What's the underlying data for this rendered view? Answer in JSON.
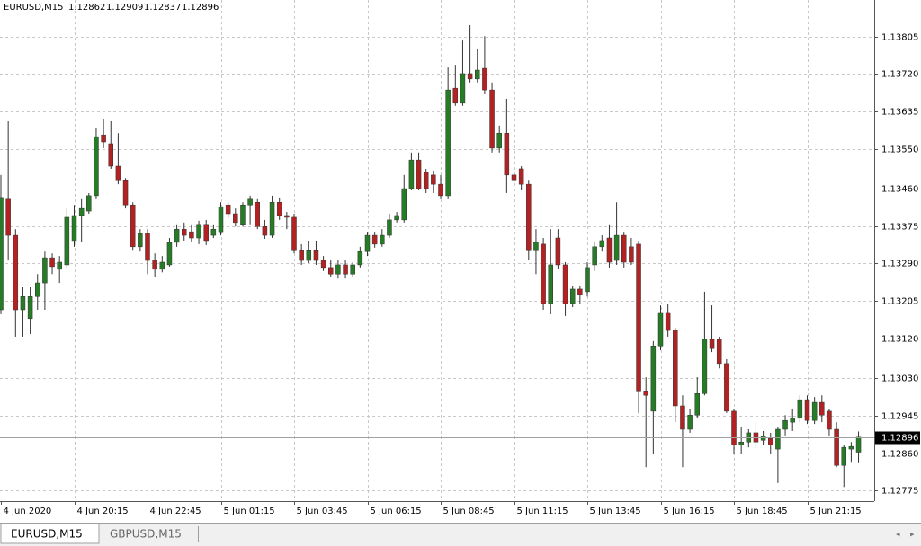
{
  "chart_data": {
    "type": "candlestick",
    "title": "EURUSD,M15",
    "categories": [
      "4 Jun 2020",
      null,
      null,
      null,
      null,
      null,
      null,
      null,
      null,
      null,
      "4 Jun 20:15",
      null,
      null,
      null,
      null,
      null,
      null,
      null,
      null,
      null,
      "4 Jun 22:45",
      null,
      null,
      null,
      null,
      null,
      null,
      null,
      null,
      null,
      "5 Jun 01:15",
      null,
      null,
      null,
      null,
      null,
      null,
      null,
      null,
      null,
      "5 Jun 03:45",
      null,
      null,
      null,
      null,
      null,
      null,
      null,
      null,
      null,
      "5 Jun 06:15",
      null,
      null,
      null,
      null,
      null,
      null,
      null,
      null,
      null,
      "5 Jun 08:45",
      null,
      null,
      null,
      null,
      null,
      null,
      null,
      null,
      null,
      "5 Jun 11:15",
      null,
      null,
      null,
      null,
      null,
      null,
      null,
      null,
      null,
      "5 Jun 13:45",
      null,
      null,
      null,
      null,
      null,
      null,
      null,
      null,
      null,
      "5 Jun 16:15",
      null,
      null,
      null,
      null,
      null,
      null,
      null,
      null,
      null,
      "5 Jun 18:45",
      null,
      null,
      null,
      null,
      null,
      null,
      null,
      null,
      null,
      "5 Jun 21:15",
      null,
      null,
      null,
      null,
      null,
      null,
      null
    ],
    "open": [
      1.13185,
      1.13436,
      1.13354,
      1.13185,
      1.13165,
      1.13215,
      1.13246,
      1.13303,
      1.13277,
      1.13287,
      1.13342,
      1.13399,
      1.13409,
      1.13444,
      1.13582,
      1.13562,
      1.13511,
      1.1348,
      1.13423,
      1.13328,
      1.13358,
      1.13297,
      1.13277,
      1.13287,
      1.13338,
      1.13368,
      1.13362,
      1.13348,
      1.13379,
      1.13354,
      1.13362,
      1.13423,
      1.13403,
      1.13379,
      1.13423,
      1.13429,
      1.13374,
      1.13354,
      1.13429,
      1.13399,
      1.13395,
      1.13321,
      1.13297,
      1.13321,
      1.13297,
      1.13281,
      1.13266,
      1.13287,
      1.13266,
      1.13287,
      1.13317,
      1.13354,
      1.13334,
      1.13354,
      1.13389,
      1.13389,
      1.1346,
      1.13525,
      1.13497,
      1.13491,
      1.1347,
      1.13444,
      1.13688,
      1.13654,
      1.13721,
      1.13709,
      1.13733,
      1.13684,
      1.13552,
      1.13586,
      1.13491,
      1.13505,
      1.1347,
      1.13321,
      1.13334,
      1.13199,
      1.13348,
      1.13287,
      1.13199,
      1.13232,
      1.13226,
      1.13287,
      1.13328,
      1.13348,
      1.13297,
      1.13354,
      1.13328,
      1.13334,
      1.13001,
      1.12955,
      1.13103,
      1.13179,
      1.13138,
      1.12967,
      1.12914,
      1.12946,
      1.12995,
      1.13118,
      1.13118,
      1.13063,
      1.12955,
      1.12879,
      1.12885,
      1.12906,
      1.12889,
      1.12893,
      1.12869,
      1.12914,
      1.1293,
      1.1294,
      1.12981,
      1.12934,
      1.12975,
      1.12955,
      1.12914,
      1.12832,
      1.12869,
      1.12862
    ],
    "high": [
      1.13491,
      1.13613,
      1.13368,
      1.13236,
      1.13236,
      1.13266,
      1.13317,
      1.13313,
      1.13307,
      1.13415,
      1.13423,
      1.13436,
      1.1345,
      1.13597,
      1.13619,
      1.13613,
      1.13586,
      1.13484,
      1.13429,
      1.13368,
      1.13368,
      1.13313,
      1.13307,
      1.13348,
      1.13379,
      1.13383,
      1.13379,
      1.13387,
      1.13389,
      1.13379,
      1.13429,
      1.13429,
      1.13415,
      1.13429,
      1.13444,
      1.13436,
      1.13389,
      1.13444,
      1.1344,
      1.13407,
      1.13403,
      1.13334,
      1.13342,
      1.13342,
      1.13307,
      1.13297,
      1.13297,
      1.13297,
      1.13293,
      1.13328,
      1.13362,
      1.13362,
      1.13368,
      1.13403,
      1.13407,
      1.13491,
      1.13542,
      1.13542,
      1.13505,
      1.13501,
      1.13491,
      1.13735,
      1.13741,
      1.13796,
      1.13831,
      1.13776,
      1.13806,
      1.13701,
      1.13603,
      1.13664,
      1.13521,
      1.13511,
      1.1348,
      1.13368,
      1.13348,
      1.13368,
      1.13368,
      1.13293,
      1.1324,
      1.1324,
      1.13293,
      1.13338,
      1.13354,
      1.13379,
      1.13429,
      1.13362,
      1.13348,
      1.13342,
      1.13032,
      1.13114,
      1.13195,
      1.13199,
      1.13144,
      1.12991,
      1.12961,
      1.13032,
      1.13226,
      1.13195,
      1.13124,
      1.13073,
      1.12961,
      1.1292,
      1.12914,
      1.1293,
      1.1291,
      1.12906,
      1.1292,
      1.12946,
      1.12961,
      1.12991,
      1.12991,
      1.12987,
      1.12991,
      1.12961,
      1.1293,
      1.12879,
      1.12885,
      1.12909
    ],
    "low": [
      1.13175,
      1.13297,
      1.13124,
      1.13124,
      1.1313,
      1.13185,
      1.13185,
      1.13266,
      1.13246,
      1.13281,
      1.13328,
      1.13338,
      1.13403,
      1.13436,
      1.13552,
      1.13505,
      1.1347,
      1.13415,
      1.13321,
      1.13317,
      1.13266,
      1.1326,
      1.1327,
      1.13283,
      1.13328,
      1.13342,
      1.13338,
      1.13334,
      1.13332,
      1.13348,
      1.13354,
      1.13393,
      1.13374,
      1.13374,
      1.13379,
      1.13368,
      1.13346,
      1.13348,
      1.13389,
      1.13368,
      1.13313,
      1.13287,
      1.13291,
      1.13287,
      1.13273,
      1.1326,
      1.13256,
      1.13256,
      1.1326,
      1.13281,
      1.13307,
      1.13326,
      1.13328,
      1.13348,
      1.13383,
      1.13383,
      1.13456,
      1.13456,
      1.1345,
      1.1345,
      1.13436,
      1.13436,
      1.13648,
      1.13648,
      1.13701,
      1.13701,
      1.13674,
      1.13542,
      1.13542,
      1.1345,
      1.13456,
      1.13456,
      1.13297,
      1.13266,
      1.13185,
      1.13175,
      1.13277,
      1.13171,
      1.13191,
      1.13199,
      1.13215,
      1.13273,
      1.13317,
      1.13281,
      1.13287,
      1.13281,
      1.13287,
      1.12951,
      1.12828,
      1.12859,
      1.13093,
      1.13124,
      1.1293,
      1.12828,
      1.12906,
      1.1294,
      1.12991,
      1.13089,
      1.13052,
      1.12951,
      1.12859,
      1.12859,
      1.12873,
      1.12869,
      1.12879,
      1.12859,
      1.12792,
      1.129,
      1.1291,
      1.1293,
      1.12926,
      1.12926,
      1.1293,
      1.129,
      1.12828,
      1.12783,
      1.12838,
      1.12837
    ],
    "close": [
      1.1344,
      1.13354,
      1.13185,
      1.13215,
      1.13215,
      1.13246,
      1.13303,
      1.13283,
      1.13293,
      1.13395,
      1.13399,
      1.13415,
      1.13444,
      1.13578,
      1.13566,
      1.13511,
      1.1348,
      1.13423,
      1.13328,
      1.13358,
      1.13297,
      1.13277,
      1.13293,
      1.13338,
      1.13368,
      1.13354,
      1.13348,
      1.13379,
      1.13342,
      1.13368,
      1.13419,
      1.13403,
      1.13383,
      1.13423,
      1.13436,
      1.13374,
      1.13354,
      1.13429,
      1.13399,
      1.13395,
      1.13321,
      1.13297,
      1.13321,
      1.13297,
      1.13281,
      1.13266,
      1.13287,
      1.13266,
      1.13287,
      1.13317,
      1.13354,
      1.13334,
      1.13354,
      1.13389,
      1.13399,
      1.1346,
      1.13525,
      1.1346,
      1.1346,
      1.1347,
      1.13444,
      1.13684,
      1.13654,
      1.13721,
      1.13709,
      1.13729,
      1.13684,
      1.13552,
      1.13586,
      1.13491,
      1.1348,
      1.1347,
      1.13321,
      1.13338,
      1.13199,
      1.13287,
      1.13287,
      1.13199,
      1.13232,
      1.1322,
      1.13281,
      1.13328,
      1.13342,
      1.13293,
      1.13354,
      1.13293,
      1.13293,
      1.13001,
      1.12991,
      1.13103,
      1.13179,
      1.13138,
      1.12967,
      1.12914,
      1.12946,
      1.12995,
      1.13118,
      1.13097,
      1.13063,
      1.12955,
      1.12879,
      1.12885,
      1.12906,
      1.12885,
      1.12898,
      1.12879,
      1.12914,
      1.12934,
      1.1294,
      1.12981,
      1.12934,
      1.12975,
      1.12946,
      1.12914,
      1.12832,
      1.12873,
      1.12875,
      1.12896
    ],
    "up_color": "#267b26",
    "down_color": "#b22222",
    "ylim": [
      1.12751,
      1.13888
    ],
    "yticks": [
      1.13805,
      {
        "value": 1.1372,
        "label": "1.13720"
      },
      1.13635,
      {
        "value": 1.1355,
        "label": "1.13550"
      },
      {
        "value": 1.1346,
        "label": "1.13460"
      },
      1.13375,
      {
        "value": 1.1329,
        "label": "1.13290"
      },
      1.13205,
      {
        "value": 1.1312,
        "label": "1.13120"
      },
      {
        "value": 1.1303,
        "label": "1.13030"
      },
      1.12945,
      {
        "value": 1.1286,
        "label": "1.12860"
      },
      1.12775
    ],
    "grid": true
  },
  "tabs": [
    "EURUSD,M15",
    "GBPUSD,M15"
  ]
}
